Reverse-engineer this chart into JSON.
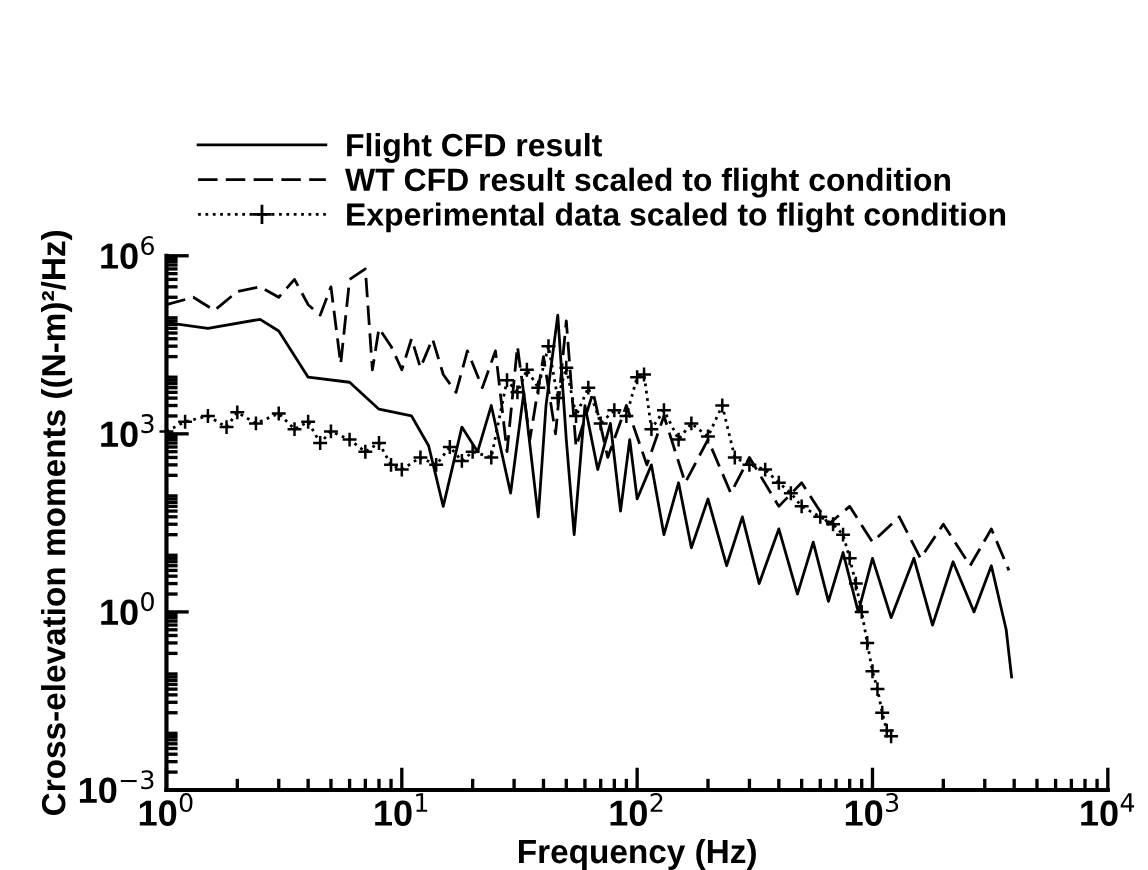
{
  "chart_data": {
    "type": "line",
    "xlabel": "Frequency (Hz)",
    "ylabel": "Cross-elevation moments ((N-m)²/Hz)",
    "log": "xy",
    "grid": false,
    "legend": "top",
    "xlim": [
      1,
      10000
    ],
    "ylim": [
      0.001,
      1000000
    ],
    "xticks": [
      {
        "value": 1,
        "label": "10$^{0}$"
      },
      {
        "value": 10,
        "label": "10$^{1}$"
      },
      {
        "value": 100,
        "label": "10$^{2}$"
      },
      {
        "value": 1000,
        "label": "10$^{3}$"
      },
      {
        "value": 10000,
        "label": "10$^{4}$"
      }
    ],
    "yticks": [
      {
        "value": 0.001,
        "label": "10$^{−3}$"
      },
      {
        "value": 1,
        "label": "10$^{0}$"
      },
      {
        "value": 1000,
        "label": "10$^{3}$"
      },
      {
        "value": 1000000,
        "label": "10$^{6}$"
      }
    ],
    "series": [
      {
        "name": "Flight CFD result",
        "color": "#000000",
        "line_style": "solid",
        "marker": "none",
        "x": [
          1,
          1.5,
          2.5,
          3,
          4,
          6,
          8,
          11,
          13,
          15,
          18,
          21,
          24,
          29,
          33,
          38,
          41,
          46,
          50,
          54,
          60,
          68,
          77,
          85,
          93,
          100,
          115,
          130,
          150,
          170,
          200,
          240,
          280,
          330,
          400,
          480,
          560,
          650,
          750,
          870,
          1000,
          1200,
          1500,
          1800,
          2200,
          2700,
          3200,
          3700,
          3900
        ],
        "values": [
          75000,
          60000,
          85000,
          54000,
          9000,
          7400,
          2600,
          2000,
          630,
          60,
          1300,
          500,
          3000,
          100,
          5000,
          40,
          3000,
          100000,
          800,
          20,
          3000,
          250,
          1500,
          50,
          800,
          80,
          300,
          20,
          150,
          12,
          80,
          6,
          40,
          3,
          25,
          2,
          15,
          1.5,
          10,
          1,
          8,
          0.8,
          8,
          0.6,
          7,
          1,
          6,
          0.5,
          0.08
        ]
      },
      {
        "name": "WT CFD result scaled to flight condition",
        "color": "#000000",
        "line_style": "dashed",
        "marker": "none",
        "x": [
          1,
          1.3,
          1.6,
          2,
          2.5,
          3,
          3.5,
          4,
          4.5,
          5,
          5.5,
          6,
          7,
          7.5,
          8,
          9,
          10,
          11,
          12,
          13.5,
          15,
          17,
          19,
          22,
          25,
          28,
          31,
          35,
          40,
          45,
          50,
          55,
          65,
          75,
          90,
          110,
          130,
          160,
          200,
          250,
          300,
          400,
          500,
          650,
          800,
          1000,
          1300,
          1600,
          2000,
          2600,
          3200,
          3800
        ],
        "values": [
          150000,
          200000,
          120000,
          250000,
          300000,
          200000,
          400000,
          150000,
          100000,
          300000,
          15000,
          400000,
          600000,
          12000,
          60000,
          30000,
          12000,
          40000,
          13000,
          40000,
          10000,
          5000,
          25000,
          6000,
          25000,
          500,
          30000,
          800,
          20000,
          1000,
          80000,
          600,
          5000,
          400,
          3000,
          300,
          2000,
          150,
          800,
          100,
          400,
          60,
          150,
          30,
          60,
          15,
          40,
          8,
          30,
          6,
          25,
          5
        ]
      },
      {
        "name": "Experimental data scaled to flight condition",
        "color": "#000000",
        "line_style": "dotted",
        "marker": "cross",
        "x": [
          1,
          1.2,
          1.5,
          1.8,
          2,
          2.4,
          3,
          3.5,
          4,
          4.5,
          5,
          6,
          7,
          8,
          9,
          10,
          12,
          14,
          16,
          18,
          20,
          24,
          28,
          31,
          34,
          38,
          42,
          46,
          50,
          55,
          62,
          70,
          80,
          90,
          100,
          107,
          115,
          130,
          150,
          170,
          200,
          230,
          260,
          300,
          350,
          400,
          450,
          500,
          600,
          680,
          750,
          800,
          850,
          900,
          950,
          1000,
          1050,
          1100,
          1150,
          1200
        ],
        "values": [
          1100,
          1600,
          2000,
          1300,
          2300,
          1500,
          2200,
          1200,
          1600,
          700,
          1100,
          800,
          500,
          700,
          300,
          250,
          400,
          300,
          600,
          350,
          500,
          400,
          8000,
          5000,
          12000,
          6000,
          30000,
          4000,
          13000,
          2000,
          6000,
          1500,
          2500,
          2000,
          9000,
          10000,
          1200,
          2500,
          800,
          1500,
          900,
          3000,
          400,
          300,
          250,
          150,
          100,
          60,
          40,
          30,
          20,
          8,
          3,
          1,
          0.3,
          0.1,
          0.05,
          0.02,
          0.01,
          0.008
        ]
      }
    ]
  }
}
